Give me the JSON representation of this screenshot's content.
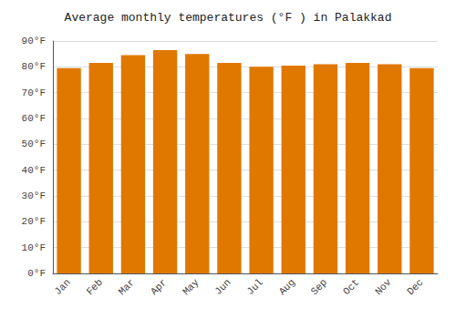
{
  "chart_data": {
    "type": "bar",
    "title": "Average monthly temperatures (°F ) in Palakkad",
    "categories": [
      "Jan",
      "Feb",
      "Mar",
      "Apr",
      "May",
      "Jun",
      "Jul",
      "Aug",
      "Sep",
      "Oct",
      "Nov",
      "Dec"
    ],
    "values": [
      79.5,
      81.5,
      84.5,
      86.5,
      85.0,
      81.5,
      80.0,
      80.5,
      81.0,
      81.5,
      81.0,
      79.5
    ],
    "color": "#E07800",
    "ylim": [
      0,
      90
    ],
    "yticks": [
      {
        "value": 0,
        "label": "0°F"
      },
      {
        "value": 10,
        "label": "10°F"
      },
      {
        "value": 20,
        "label": "20°F"
      },
      {
        "value": 30,
        "label": "30°F"
      },
      {
        "value": 40,
        "label": "40°F"
      },
      {
        "value": 50,
        "label": "50°F"
      },
      {
        "value": 60,
        "label": "60°F"
      },
      {
        "value": 70,
        "label": "70°F"
      },
      {
        "value": 80,
        "label": "80°F"
      },
      {
        "value": 90,
        "label": "90°F"
      }
    ],
    "grid": true
  }
}
